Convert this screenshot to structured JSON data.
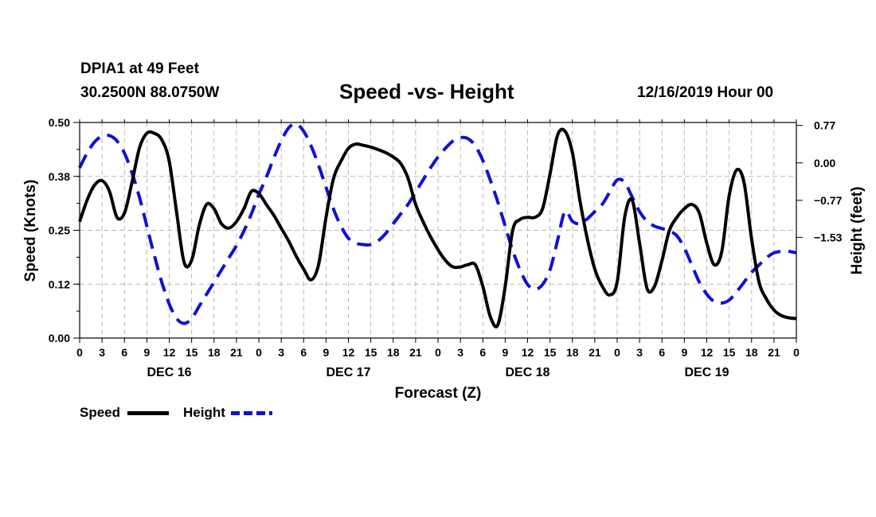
{
  "header": {
    "station": "DPIA1 at 49 Feet",
    "coordinates": "30.2500N 88.0750W",
    "title": "Speed -vs- Height",
    "timestamp": "12/16/2019 Hour 00"
  },
  "legend": {
    "speed_label": "Speed",
    "height_label": "Height"
  },
  "colors": {
    "speed": "#000000",
    "height": "#1010d8",
    "grid": "#b8b8b8",
    "background": "#ffffff"
  },
  "chart_data": {
    "type": "line",
    "title": "Speed -vs- Height",
    "xlabel": "Forecast (Z)",
    "ylabel": "Speed (Knots)",
    "y2label": "Height (feet)",
    "x_range_hours": [
      0,
      96
    ],
    "x_tick_step_hours": 3,
    "x_tick_labels": [
      "0",
      "3",
      "6",
      "9",
      "12",
      "15",
      "18",
      "21",
      "0",
      "3",
      "6",
      "9",
      "12",
      "15",
      "18",
      "21",
      "0",
      "3",
      "6",
      "9",
      "12",
      "15",
      "18",
      "21",
      "0",
      "3",
      "6",
      "9",
      "12",
      "15",
      "18",
      "21",
      "0"
    ],
    "day_labels": [
      {
        "label": "DEC 16",
        "hour": 12
      },
      {
        "label": "DEC 17",
        "hour": 36
      },
      {
        "label": "DEC 18",
        "hour": 60
      },
      {
        "label": "DEC 19",
        "hour": 84
      }
    ],
    "ylim": [
      0,
      0.5
    ],
    "y_ticks": [
      0.0,
      0.125,
      0.25,
      0.375,
      0.5
    ],
    "y_tick_labels": [
      "0.00",
      "0.12",
      "0.25",
      "0.38",
      "0.50"
    ],
    "y2lim": [
      -3.6,
      0.83
    ],
    "y2_ticks": [
      0.77,
      0.0,
      -0.77,
      -1.53
    ],
    "y2_tick_labels": [
      "0.77",
      "0.00",
      "−0.77",
      "−1.53"
    ],
    "grid": true,
    "series": [
      {
        "name": "Speed",
        "axis": "left",
        "style": "solid",
        "x": [
          0,
          1,
          2,
          3,
          4,
          5,
          6,
          7,
          8,
          9,
          10,
          11,
          12,
          13,
          14,
          15,
          16,
          17,
          18,
          19,
          20,
          21,
          22,
          23,
          24,
          25,
          26,
          27,
          28,
          29,
          30,
          31,
          32,
          33,
          34,
          35,
          36,
          37,
          38,
          39,
          40,
          41,
          42,
          43,
          44,
          45,
          46,
          47,
          48,
          49,
          50,
          51,
          52,
          53,
          54,
          55,
          56,
          57,
          58,
          59,
          60,
          61,
          62,
          63,
          64,
          65,
          66,
          67,
          68,
          69,
          70,
          71,
          72,
          73,
          74,
          75,
          76,
          77,
          78,
          79,
          80,
          81,
          82,
          83,
          84,
          85,
          86,
          87,
          88,
          89,
          90,
          91,
          92,
          93,
          94,
          95,
          96
        ],
        "values": [
          0.27,
          0.32,
          0.355,
          0.365,
          0.34,
          0.28,
          0.29,
          0.36,
          0.44,
          0.475,
          0.475,
          0.46,
          0.41,
          0.29,
          0.175,
          0.18,
          0.26,
          0.31,
          0.3,
          0.265,
          0.255,
          0.27,
          0.3,
          0.34,
          0.335,
          0.31,
          0.285,
          0.255,
          0.225,
          0.19,
          0.16,
          0.135,
          0.17,
          0.28,
          0.37,
          0.41,
          0.44,
          0.45,
          0.447,
          0.443,
          0.437,
          0.43,
          0.42,
          0.405,
          0.37,
          0.31,
          0.27,
          0.235,
          0.205,
          0.18,
          0.165,
          0.165,
          0.17,
          0.17,
          0.12,
          0.05,
          0.03,
          0.12,
          0.25,
          0.275,
          0.28,
          0.28,
          0.3,
          0.38,
          0.47,
          0.48,
          0.43,
          0.32,
          0.23,
          0.16,
          0.12,
          0.1,
          0.13,
          0.28,
          0.32,
          0.22,
          0.115,
          0.12,
          0.18,
          0.25,
          0.28,
          0.3,
          0.31,
          0.29,
          0.22,
          0.17,
          0.2,
          0.33,
          0.39,
          0.36,
          0.23,
          0.13,
          0.09,
          0.065,
          0.052,
          0.047,
          0.045
        ]
      },
      {
        "name": "Height",
        "axis": "right",
        "style": "dashed",
        "x": [
          0,
          1,
          2,
          3,
          4,
          5,
          6,
          7,
          8,
          9,
          10,
          11,
          12,
          13,
          14,
          15,
          16,
          17,
          18,
          19,
          20,
          21,
          22,
          23,
          24,
          25,
          26,
          27,
          28,
          29,
          30,
          31,
          32,
          33,
          34,
          35,
          36,
          37,
          38,
          39,
          40,
          41,
          42,
          43,
          44,
          45,
          46,
          47,
          48,
          49,
          50,
          51,
          52,
          53,
          54,
          55,
          56,
          57,
          58,
          59,
          60,
          61,
          62,
          63,
          64,
          65,
          66,
          67,
          68,
          69,
          70,
          71,
          72,
          73,
          74,
          75,
          76,
          77,
          78,
          79,
          80,
          81,
          82,
          83,
          84,
          85,
          86,
          87,
          88,
          89,
          90,
          91,
          92,
          93,
          94,
          95,
          96
        ],
        "values": [
          -0.1,
          0.2,
          0.43,
          0.55,
          0.56,
          0.45,
          0.2,
          -0.2,
          -0.7,
          -1.3,
          -1.9,
          -2.45,
          -2.9,
          -3.2,
          -3.3,
          -3.2,
          -2.95,
          -2.7,
          -2.45,
          -2.2,
          -1.95,
          -1.7,
          -1.4,
          -1.05,
          -0.65,
          -0.3,
          0.1,
          0.45,
          0.72,
          0.8,
          0.65,
          0.35,
          -0.05,
          -0.5,
          -0.95,
          -1.3,
          -1.55,
          -1.65,
          -1.68,
          -1.68,
          -1.6,
          -1.45,
          -1.25,
          -1.05,
          -0.85,
          -0.6,
          -0.35,
          -0.1,
          0.12,
          0.3,
          0.45,
          0.52,
          0.5,
          0.35,
          0.05,
          -0.35,
          -0.8,
          -1.3,
          -1.8,
          -2.2,
          -2.5,
          -2.6,
          -2.5,
          -2.2,
          -1.6,
          -1.0,
          -1.2,
          -1.25,
          -1.15,
          -1.0,
          -0.85,
          -0.6,
          -0.35,
          -0.4,
          -0.7,
          -1.0,
          -1.2,
          -1.3,
          -1.35,
          -1.4,
          -1.5,
          -1.75,
          -2.1,
          -2.45,
          -2.7,
          -2.85,
          -2.88,
          -2.82,
          -2.65,
          -2.45,
          -2.25,
          -2.1,
          -1.95,
          -1.85,
          -1.82,
          -1.82,
          -1.85
        ]
      }
    ]
  }
}
